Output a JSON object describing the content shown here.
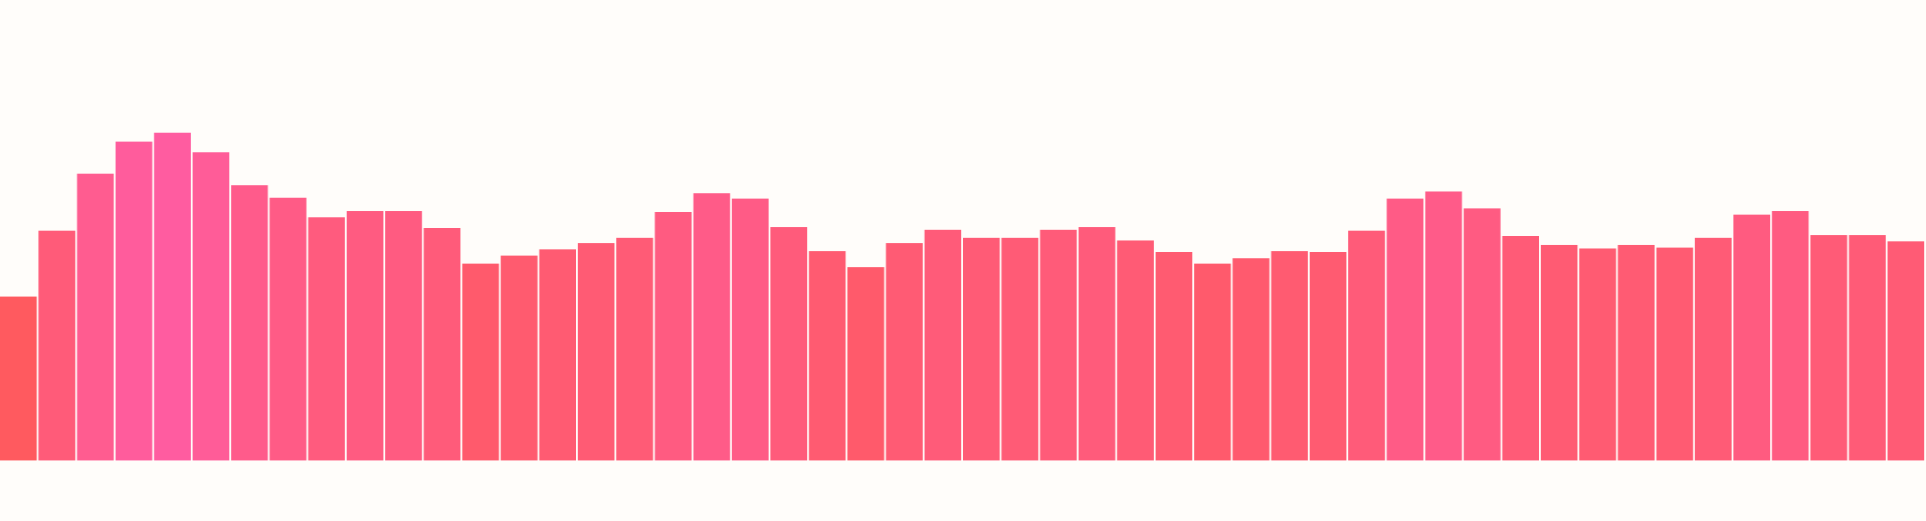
{
  "chart_data": {
    "type": "bar",
    "values": [
      184,
      258,
      322,
      358,
      368,
      346,
      309,
      295,
      273,
      280,
      280,
      261,
      221,
      230,
      237,
      244,
      250,
      279,
      300,
      294,
      262,
      235,
      217,
      244,
      259,
      250,
      250,
      259,
      262,
      247,
      234,
      221,
      227,
      235,
      234,
      258,
      294,
      302,
      283,
      252,
      242,
      238,
      242,
      239,
      250,
      276,
      280,
      253,
      253,
      246
    ],
    "colors": [
      "#ff5a5f",
      "#ff5ca0"
    ],
    "ylim": [
      0,
      517
    ]
  }
}
